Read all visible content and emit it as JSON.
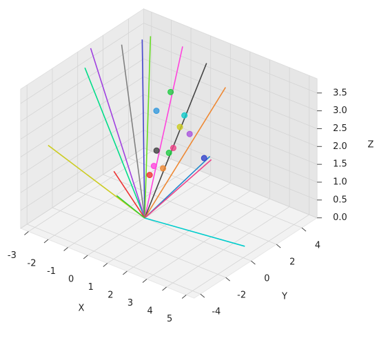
{
  "chart_data": {
    "type": "line3d",
    "xlabel": "X",
    "ylabel": "Y",
    "zlabel": "Z",
    "xlim": [
      -3.4,
      5.4
    ],
    "ylim": [
      -4.5,
      5.2
    ],
    "zlim": [
      0,
      3.9
    ],
    "xticks": [
      -3,
      -2,
      -1,
      0,
      1,
      2,
      3,
      4,
      5
    ],
    "yticks": [
      -4,
      -2,
      0,
      2,
      4
    ],
    "zticks": [
      {
        "value": 0,
        "label": "0.0"
      },
      {
        "value": 0.5,
        "label": "0.5"
      },
      {
        "value": 1,
        "label": "1.0"
      },
      {
        "value": 1.5,
        "label": "1.5"
      },
      {
        "value": 2,
        "label": "2.0"
      },
      {
        "value": 2.5,
        "label": "2.5"
      },
      {
        "value": 3,
        "label": "3.0"
      },
      {
        "value": 3.5,
        "label": "3.5"
      }
    ],
    "grid": true,
    "segments": [
      {
        "color": "#cccc22",
        "end": [
          -3.1,
          -2.8,
          2.0
        ]
      },
      {
        "color": "#00dd88",
        "end": [
          -3.1,
          0.1,
          3.5
        ]
      },
      {
        "color": "#a040e0",
        "end": [
          -3.0,
          0.4,
          4.0
        ]
      },
      {
        "color": "#808080",
        "end": [
          -2.2,
          1.6,
          4.0
        ]
      },
      {
        "color": "#4444cc",
        "end": [
          -1.8,
          2.6,
          4.0
        ]
      },
      {
        "color": "#66dd22",
        "end": [
          -1.7,
          3.1,
          4.0
        ]
      },
      {
        "color": "#ff44dd",
        "end": [
          -0.2,
          3.3,
          4.0
        ]
      },
      {
        "color": "#444444",
        "end": [
          0.5,
          4.1,
          3.5
        ]
      },
      {
        "color": "#ee8833",
        "end": [
          1.4,
          4.2,
          3.0
        ]
      },
      {
        "color": "#2288cc",
        "end": [
          0.8,
          3.9,
          1.0
        ]
      },
      {
        "color": "#ee4488",
        "end": [
          1.0,
          3.7,
          1.0
        ]
      },
      {
        "color": "#00cccc",
        "end": [
          4.5,
          0.9,
          0
        ]
      },
      {
        "color": "#ee3333",
        "end": [
          -1.5,
          -0.1,
          1.0
        ]
      },
      {
        "color": "#33cc33",
        "end": [
          -1.1,
          -0.5,
          0.5
        ]
      }
    ],
    "points": [
      {
        "color": "#22cc44",
        "pos": [
          -0.1,
          2.2,
          3.0
        ]
      },
      {
        "color": "#3399dd",
        "pos": [
          -0.5,
          1.7,
          2.5
        ]
      },
      {
        "color": "#11cccc",
        "pos": [
          0.6,
          2.2,
          2.5
        ]
      },
      {
        "color": "#cccc22",
        "pos": [
          0.5,
          2.0,
          2.2
        ]
      },
      {
        "color": "#aa55dd",
        "pos": [
          0.8,
          2.3,
          2.0
        ]
      },
      {
        "color": "#444444",
        "pos": [
          -0.3,
          1.4,
          1.5
        ]
      },
      {
        "color": "#ee4488",
        "pos": [
          0.1,
          2.1,
          1.5
        ]
      },
      {
        "color": "#22cc44",
        "pos": [
          0.2,
          1.6,
          1.5
        ]
      },
      {
        "color": "#3344cc",
        "pos": [
          0.7,
          3.6,
          1.0
        ]
      },
      {
        "color": "#ff44dd",
        "pos": [
          -0.5,
          1.5,
          1.0
        ]
      },
      {
        "color": "#ee8833",
        "pos": [
          -0.1,
          1.6,
          1.0
        ]
      },
      {
        "color": "#ee3333",
        "pos": [
          -0.2,
          0.7,
          1.0
        ]
      }
    ]
  }
}
